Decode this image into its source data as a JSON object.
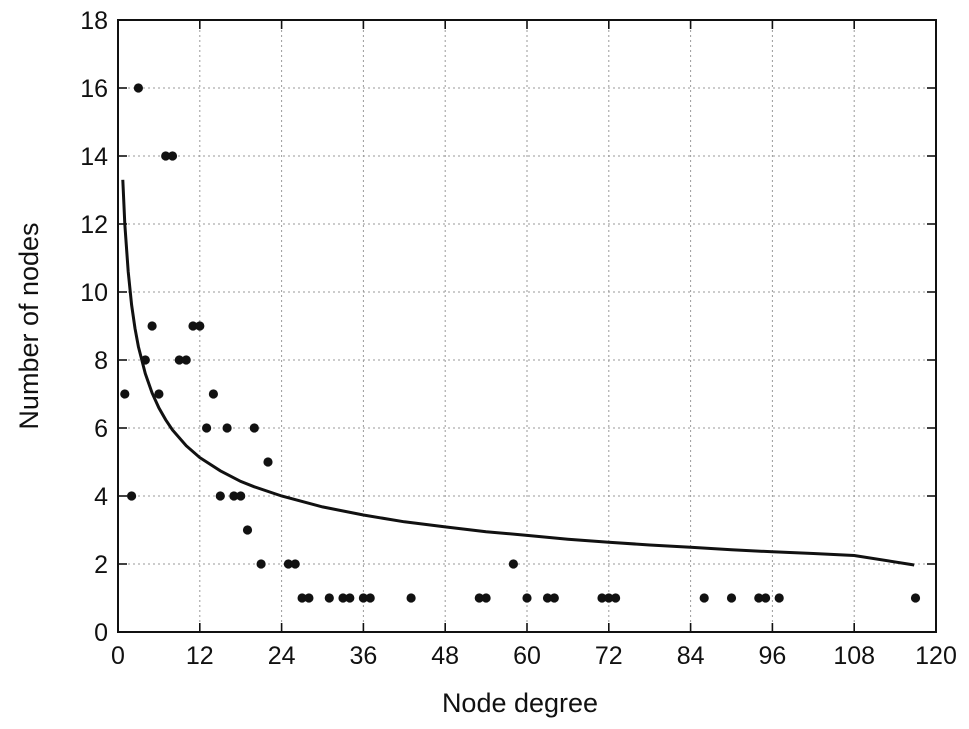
{
  "chart_data": {
    "type": "scatter",
    "xlabel": "Node degree",
    "ylabel": "Number of nodes",
    "xlim": [
      0,
      120
    ],
    "ylim": [
      0,
      18
    ],
    "x_ticks": [
      0,
      12,
      24,
      36,
      48,
      60,
      72,
      84,
      96,
      108,
      120
    ],
    "y_ticks": [
      0,
      2,
      4,
      6,
      8,
      10,
      12,
      14,
      16,
      18
    ],
    "grid": true,
    "series": [
      {
        "type": "scatter",
        "color": "#111111",
        "points": [
          [
            1,
            7
          ],
          [
            2,
            4
          ],
          [
            3,
            16
          ],
          [
            4,
            8
          ],
          [
            5,
            9
          ],
          [
            6,
            7
          ],
          [
            7,
            14
          ],
          [
            8,
            14
          ],
          [
            9,
            8
          ],
          [
            10,
            8
          ],
          [
            11,
            9
          ],
          [
            12,
            9
          ],
          [
            13,
            6
          ],
          [
            14,
            7
          ],
          [
            15,
            4
          ],
          [
            16,
            6
          ],
          [
            17,
            4
          ],
          [
            18,
            4
          ],
          [
            19,
            3
          ],
          [
            20,
            6
          ],
          [
            21,
            2
          ],
          [
            22,
            5
          ],
          [
            25,
            2
          ],
          [
            26,
            2
          ],
          [
            27,
            1
          ],
          [
            28,
            1
          ],
          [
            31,
            1
          ],
          [
            33,
            1
          ],
          [
            34,
            1
          ],
          [
            36,
            1
          ],
          [
            37,
            1
          ],
          [
            43,
            1
          ],
          [
            53,
            1
          ],
          [
            54,
            1
          ],
          [
            58,
            2
          ],
          [
            60,
            1
          ],
          [
            63,
            1
          ],
          [
            64,
            1
          ],
          [
            71,
            1
          ],
          [
            72,
            1
          ],
          [
            73,
            1
          ],
          [
            86,
            1
          ],
          [
            90,
            1
          ],
          [
            94,
            1
          ],
          [
            95,
            1
          ],
          [
            97,
            1
          ],
          [
            117,
            1
          ]
        ]
      },
      {
        "type": "line",
        "color": "#111111",
        "x": [
          0.7,
          1,
          1.5,
          2,
          2.5,
          3,
          4,
          5,
          6,
          7,
          8,
          10,
          12,
          15,
          18,
          20,
          24,
          30,
          36,
          42,
          48,
          54,
          60,
          66,
          72,
          78,
          84,
          90,
          96,
          102,
          108,
          116.8
        ],
        "y": [
          13.3,
          12.0,
          10.6,
          9.62,
          8.93,
          8.39,
          7.6,
          7.03,
          6.59,
          6.24,
          5.94,
          5.48,
          5.13,
          4.74,
          4.43,
          4.27,
          4.0,
          3.68,
          3.44,
          3.24,
          3.09,
          2.95,
          2.84,
          2.73,
          2.64,
          2.56,
          2.49,
          2.42,
          2.36,
          2.31,
          2.25,
          1.97
        ]
      }
    ]
  }
}
